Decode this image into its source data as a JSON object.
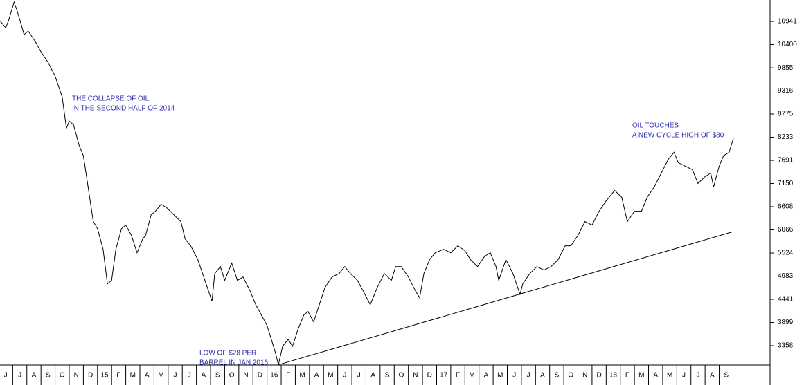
{
  "chart_data": {
    "type": "line",
    "x": [
      -0.4,
      0,
      0.2,
      0.6,
      0.8,
      1.1,
      1.3,
      1.6,
      2.1,
      2.5,
      3.0,
      3.5,
      4.0,
      4.3,
      4.5,
      4.8,
      5.2,
      5.5,
      5.8,
      6.2,
      6.5,
      6.9,
      7.2,
      7.5,
      7.8,
      8.2,
      8.5,
      8.9,
      9.3,
      9.7,
      9.9,
      10.3,
      10.6,
      11.0,
      11.4,
      11.9,
      12.4,
      12.7,
      13.1,
      13.6,
      14.1,
      14.6,
      14.8,
      15.2,
      15.5,
      16.0,
      16.4,
      16.8,
      17.3,
      17.7,
      18.1,
      18.5,
      18.8,
      19.1,
      19.3,
      19.6,
      20.0,
      20.3,
      20.7,
      21.1,
      21.4,
      21.8,
      22.2,
      22.6,
      23.1,
      23.6,
      24.0,
      24.4,
      24.9,
      25.3,
      25.8,
      26.3,
      26.8,
      27.3,
      27.6,
      28.0,
      28.5,
      29.0,
      29.3,
      29.6,
      30.0,
      30.4,
      31.0,
      31.5,
      32.0,
      32.5,
      32.9,
      33.4,
      33.9,
      34.3,
      34.7,
      34.9,
      35.4,
      35.9,
      36.4,
      36.6,
      37.1,
      37.6,
      38.1,
      38.6,
      39.1,
      39.6,
      40.0,
      40.5,
      41.0,
      41.5,
      42.0,
      42.5,
      43.1,
      43.6,
      44.0,
      44.5,
      45.0,
      45.4,
      45.9,
      46.4,
      46.9,
      47.3,
      47.6,
      48.1,
      48.6,
      49.0,
      49.5,
      49.9,
      50.1,
      50.5,
      50.8,
      51.2,
      51.5
    ],
    "series": [
      {
        "color": "#000000",
        "values": [
          10957,
          10795,
          10957,
          11394,
          11200,
          10876,
          10633,
          10714,
          10471,
          10228,
          9985,
          9661,
          9175,
          8446,
          8608,
          8527,
          8041,
          7798,
          7150,
          6259,
          6097,
          5611,
          4801,
          4882,
          5611,
          6097,
          6178,
          5935,
          5530,
          5854,
          5935,
          6421,
          6502,
          6664,
          6583,
          6421,
          6259,
          5854,
          5692,
          5368,
          4882,
          4396,
          5044,
          5206,
          4882,
          5287,
          4882,
          4963,
          4639,
          4315,
          4072,
          3829,
          3505,
          3181,
          2910,
          3343,
          3505,
          3343,
          3748,
          4072,
          4153,
          3910,
          4315,
          4720,
          4963,
          5044,
          5206,
          5044,
          4882,
          4639,
          4315,
          4720,
          5044,
          4882,
          5206,
          5206,
          4963,
          4639,
          4477,
          5044,
          5368,
          5530,
          5611,
          5530,
          5692,
          5579,
          5368,
          5206,
          5449,
          5530,
          5206,
          4882,
          5368,
          5044,
          4558,
          4801,
          5044,
          5206,
          5125,
          5206,
          5368,
          5692,
          5692,
          5935,
          6259,
          6178,
          6502,
          6745,
          6988,
          6826,
          6259,
          6502,
          6502,
          6826,
          7069,
          7393,
          7717,
          7879,
          7636,
          7555,
          7474,
          7150,
          7312,
          7393,
          7069,
          7555,
          7798,
          7879,
          8203
        ]
      }
    ],
    "trendline": {
      "x": [
        19.3,
        51.4
      ],
      "values": [
        2910,
        6016
      ],
      "color": "#000000"
    },
    "annotations": [
      {
        "lines": [
          "THE COLLAPSE OF OIL",
          "IN THE SECOND HALF OF 2014"
        ]
      },
      {
        "lines": [
          "OIL TOUCHES",
          "A NEW CYCLE HIGH OF $80"
        ]
      },
      {
        "lines": [
          "LOW OF $28 PER",
          "BARREL IN JAN 2016"
        ]
      }
    ],
    "annotation_color": "#2b2bb0",
    "xlim": [
      -0.4,
      54.1
    ],
    "xticks": [
      {
        "value": 0,
        "label": "J"
      },
      {
        "value": 1,
        "label": "J"
      },
      {
        "value": 2,
        "label": "A"
      },
      {
        "value": 3,
        "label": "S"
      },
      {
        "value": 4,
        "label": "O"
      },
      {
        "value": 5,
        "label": "N"
      },
      {
        "value": 6,
        "label": "D"
      },
      {
        "value": 7,
        "label": "15"
      },
      {
        "value": 8,
        "label": "F"
      },
      {
        "value": 9,
        "label": "M"
      },
      {
        "value": 10,
        "label": "A"
      },
      {
        "value": 11,
        "label": "M"
      },
      {
        "value": 12,
        "label": "J"
      },
      {
        "value": 13,
        "label": "J"
      },
      {
        "value": 14,
        "label": "A"
      },
      {
        "value": 15,
        "label": "S"
      },
      {
        "value": 16,
        "label": "O"
      },
      {
        "value": 17,
        "label": "N"
      },
      {
        "value": 18,
        "label": "D"
      },
      {
        "value": 19,
        "label": "16"
      },
      {
        "value": 20,
        "label": "F"
      },
      {
        "value": 21,
        "label": "M"
      },
      {
        "value": 22,
        "label": "A"
      },
      {
        "value": 23,
        "label": "M"
      },
      {
        "value": 24,
        "label": "J"
      },
      {
        "value": 25,
        "label": "J"
      },
      {
        "value": 26,
        "label": "A"
      },
      {
        "value": 27,
        "label": "S"
      },
      {
        "value": 28,
        "label": "O"
      },
      {
        "value": 29,
        "label": "N"
      },
      {
        "value": 30,
        "label": "D"
      },
      {
        "value": 31,
        "label": "17"
      },
      {
        "value": 32,
        "label": "F"
      },
      {
        "value": 33,
        "label": "M"
      },
      {
        "value": 34,
        "label": "A"
      },
      {
        "value": 35,
        "label": "M"
      },
      {
        "value": 36,
        "label": "J"
      },
      {
        "value": 37,
        "label": "J"
      },
      {
        "value": 38,
        "label": "A"
      },
      {
        "value": 39,
        "label": "S"
      },
      {
        "value": 40,
        "label": "O"
      },
      {
        "value": 41,
        "label": "N"
      },
      {
        "value": 42,
        "label": "D"
      },
      {
        "value": 43,
        "label": "18"
      },
      {
        "value": 44,
        "label": "F"
      },
      {
        "value": 45,
        "label": "M"
      },
      {
        "value": 46,
        "label": "A"
      },
      {
        "value": 47,
        "label": "M"
      },
      {
        "value": 48,
        "label": "J"
      },
      {
        "value": 49,
        "label": "J"
      },
      {
        "value": 50,
        "label": "A"
      },
      {
        "value": 51,
        "label": "S"
      }
    ],
    "ylim": [
      2905,
      11443
    ],
    "yticks": [
      3358,
      3899,
      4441,
      4983,
      5524,
      6066,
      6608,
      7150,
      7691,
      8233,
      8775,
      9316,
      9855,
      10400,
      10941
    ],
    "grid": false
  }
}
